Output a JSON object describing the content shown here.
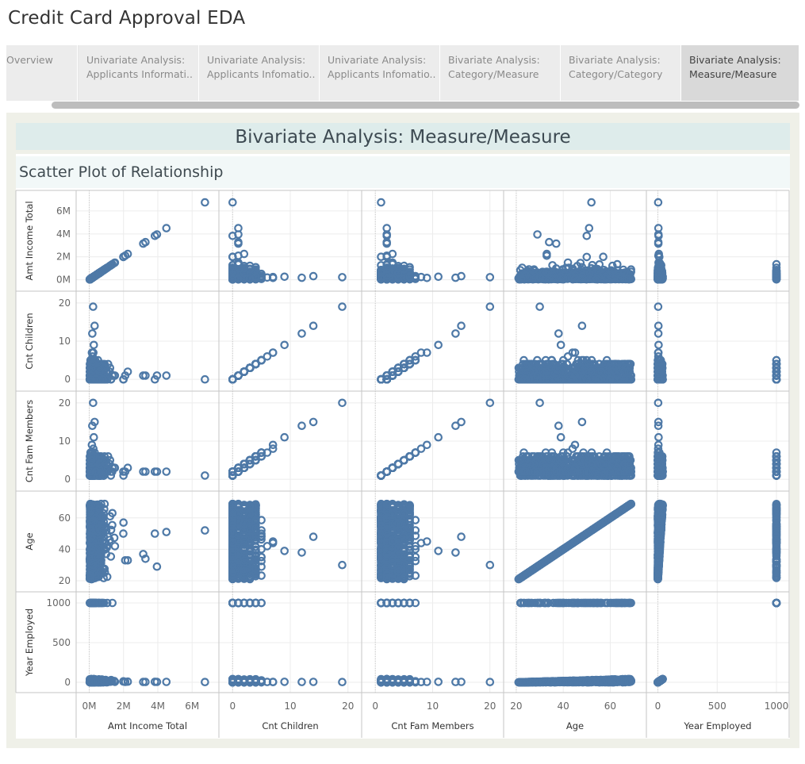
{
  "app_title": "Credit Card Approval EDA",
  "tabs": [
    {
      "line1": "Overview",
      "line2": ""
    },
    {
      "line1": "Univariate Analysis:",
      "line2": "Applicants Informati.."
    },
    {
      "line1": "Univariate Analysis:",
      "line2": "Applicants Infomatio.."
    },
    {
      "line1": "Univariate Analysis:",
      "line2": "Applicants Infomatio.."
    },
    {
      "line1": "Bivariate Analysis:",
      "line2": "Category/Measure"
    },
    {
      "line1": "Bivariate Analysis:",
      "line2": "Category/Category"
    },
    {
      "line1": "Bivariate Analysis:",
      "line2": "Measure/Measure"
    }
  ],
  "active_tab": 6,
  "dashboard_title": "Bivariate Analysis: Measure/Measure",
  "sheet_title": "Scatter Plot of Relationship",
  "colors": {
    "mark": "#4e79a7",
    "title_band": "#deeceb",
    "dashboard_bg": "#eff0e8"
  },
  "chart_data": {
    "type": "scatter",
    "subtype": "scatter-matrix",
    "variables": [
      {
        "name": "Amt Income Total",
        "range": [
          -300000,
          7100000
        ],
        "ticks": [
          0,
          2000000,
          4000000,
          6000000
        ],
        "tick_labels": [
          "0M",
          "2M",
          "4M",
          "6M"
        ]
      },
      {
        "name": "Cnt Children",
        "range": [
          -1,
          21
        ],
        "ticks": [
          0,
          10,
          20
        ],
        "tick_labels": [
          "0",
          "10",
          "20"
        ]
      },
      {
        "name": "Cnt Fam Members",
        "range": [
          -1,
          21
        ],
        "ticks": [
          0,
          10,
          20
        ],
        "tick_labels": [
          "0",
          "10",
          "20"
        ]
      },
      {
        "name": "Age",
        "range": [
          18,
          72
        ],
        "ticks": [
          20,
          40,
          60
        ],
        "tick_labels": [
          "20",
          "40",
          "60"
        ]
      },
      {
        "name": "Year Employed",
        "range": [
          -30,
          1040
        ],
        "ticks": [
          0,
          500,
          1000
        ],
        "tick_labels": [
          "0",
          "500",
          "1000"
        ]
      }
    ],
    "grid": true,
    "marker": "open-circle",
    "color": "#4e79a7",
    "notable_points": [
      {
        "income": 6750000,
        "children": 0,
        "fam": 1,
        "age": 52,
        "years": 3
      },
      {
        "income": 4500000,
        "children": 1,
        "fam": 2,
        "age": 51,
        "years": 5
      },
      {
        "income": 3950000,
        "children": 1,
        "fam": 2,
        "age": 29,
        "years": 5
      },
      {
        "income": 3830000,
        "children": 0,
        "fam": 2,
        "age": 50,
        "years": 6
      },
      {
        "income": 3280000,
        "children": 1,
        "fam": 2,
        "age": 34,
        "years": 4
      },
      {
        "income": 3150000,
        "children": 1,
        "fam": 2,
        "age": 37,
        "years": 4
      },
      {
        "income": 2250000,
        "children": 2,
        "fam": 3,
        "age": 33,
        "years": 8
      },
      {
        "income": 2100000,
        "children": 1,
        "fam": 2,
        "age": 33,
        "years": 5
      },
      {
        "income": 1990000,
        "children": 0,
        "fam": 2,
        "age": 50,
        "years": 10
      },
      {
        "income": 2000000,
        "children": 0,
        "fam": 1,
        "age": 57,
        "years": 12
      },
      {
        "income": 1000000,
        "children": 2,
        "fam": 4,
        "age": 52,
        "years": 8
      },
      {
        "income": 1100000,
        "children": 4,
        "fam": 6,
        "age": 48,
        "years": 7
      },
      {
        "income": 900000,
        "children": 3,
        "fam": 5,
        "age": 44,
        "years": 9
      },
      {
        "income": 1500000,
        "children": 1,
        "fam": 3,
        "age": 42,
        "years": 6
      },
      {
        "income": 1200000,
        "children": 2,
        "fam": 4,
        "age": 46,
        "years": 11
      },
      {
        "income": 225000,
        "children": 19,
        "fam": 20,
        "age": 30,
        "years": 3
      },
      {
        "income": 315000,
        "children": 14,
        "fam": 15,
        "age": 48,
        "years": 5
      },
      {
        "income": 180000,
        "children": 12,
        "fam": 14,
        "age": 38,
        "years": 4
      },
      {
        "income": 270000,
        "children": 9,
        "fam": 11,
        "age": 39,
        "years": 6
      },
      {
        "income": 160000,
        "children": 7,
        "fam": 9,
        "age": 45,
        "years": 5
      },
      {
        "income": 240000,
        "children": 7,
        "fam": 8,
        "age": 44,
        "years": 3
      },
      {
        "income": 200000,
        "children": 6,
        "fam": 7,
        "age": 42,
        "years": 4
      },
      {
        "income": 350000,
        "children": 5,
        "fam": 6,
        "age": 35,
        "years": 7
      },
      {
        "income": 150000,
        "children": 3,
        "fam": 5,
        "age": 40,
        "years": 2
      },
      {
        "income": 80000,
        "children": 1,
        "fam": 3,
        "age": 45,
        "years": 1000
      },
      {
        "income": 400000,
        "children": 0,
        "fam": 2,
        "age": 60,
        "years": 1000
      },
      {
        "income": 1350000,
        "children": 1,
        "fam": 3,
        "age": 63,
        "years": 1000
      },
      {
        "income": 120000,
        "children": 3,
        "fam": 5,
        "age": 48,
        "years": 1000
      },
      {
        "income": 250000,
        "children": 4,
        "fam": 6,
        "age": 58,
        "years": 1000
      },
      {
        "income": 600000,
        "children": 2,
        "fam": 4,
        "age": 66,
        "years": 1000
      },
      {
        "income": 800000,
        "children": 0,
        "fam": 1,
        "age": 55,
        "years": 1000
      }
    ],
    "notes": [
      "Amt Income Total",
      "Cnt Children",
      "Cnt Fam Members",
      "Age",
      "Year Employed"
    ]
  }
}
